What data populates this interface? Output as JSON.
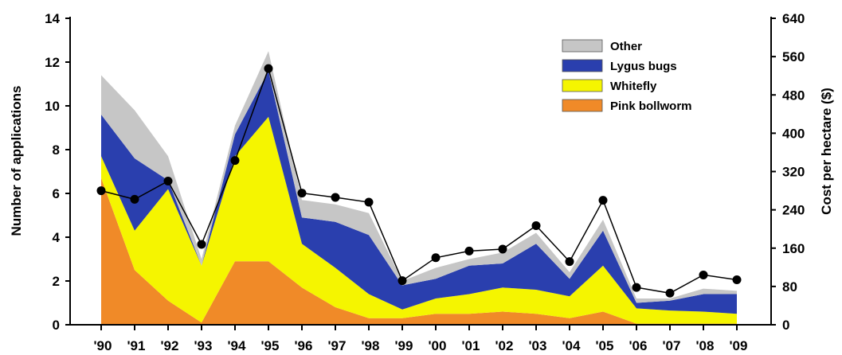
{
  "chart_data": {
    "type": "area",
    "stacked": true,
    "categories": [
      "'90",
      "'91",
      "'92",
      "'93",
      "'94",
      "'95",
      "'96",
      "'97",
      "'98",
      "'99",
      "'00",
      "'01",
      "'02",
      "'03",
      "'04",
      "'05",
      "'06",
      "'07",
      "'08",
      "'09"
    ],
    "ylabel": "Number of applications",
    "ylim": [
      0,
      14
    ],
    "yticks": [
      "0",
      "2",
      "4",
      "6",
      "8",
      "10",
      "12",
      "14"
    ],
    "y2label": "Cost per hectare ($)",
    "y2lim": [
      0,
      640
    ],
    "y2ticks": [
      "0",
      "80",
      "160",
      "240",
      "320",
      "400",
      "480",
      "560",
      "640"
    ],
    "legend_position": "top-right",
    "series": [
      {
        "name": "Pink bollworm",
        "color": "#f08a28",
        "values": [
          6.7,
          2.5,
          1.1,
          0.1,
          2.9,
          2.9,
          1.7,
          0.8,
          0.3,
          0.3,
          0.5,
          0.5,
          0.6,
          0.5,
          0.3,
          0.6,
          0.05,
          0.05,
          0.05,
          0.05
        ]
      },
      {
        "name": "Whitefly",
        "color": "#f5f500",
        "values": [
          1.0,
          1.8,
          5.1,
          2.6,
          4.8,
          6.6,
          2.0,
          1.8,
          1.1,
          0.4,
          0.7,
          0.9,
          1.1,
          1.1,
          1.0,
          2.1,
          0.7,
          0.6,
          0.55,
          0.45
        ]
      },
      {
        "name": "Lygus bugs",
        "color": "#2a3fae",
        "values": [
          1.9,
          3.3,
          0.4,
          0.0,
          1.0,
          2.1,
          1.2,
          2.1,
          2.7,
          1.1,
          0.9,
          1.3,
          1.1,
          2.1,
          0.8,
          1.6,
          0.25,
          0.45,
          0.8,
          0.9
        ]
      },
      {
        "name": "Other",
        "color": "#c6c6c6",
        "values": [
          1.8,
          2.2,
          1.1,
          0.3,
          0.4,
          0.9,
          0.8,
          0.8,
          1.0,
          0.2,
          0.5,
          0.3,
          0.5,
          0.5,
          0.3,
          0.5,
          0.2,
          0.1,
          0.25,
          0.15
        ]
      }
    ],
    "cost_line": {
      "values": [
        280,
        262,
        300,
        168,
        343,
        535,
        275,
        266,
        256,
        92,
        140,
        154,
        158,
        207,
        132,
        260,
        78,
        66,
        104,
        94
      ]
    }
  }
}
